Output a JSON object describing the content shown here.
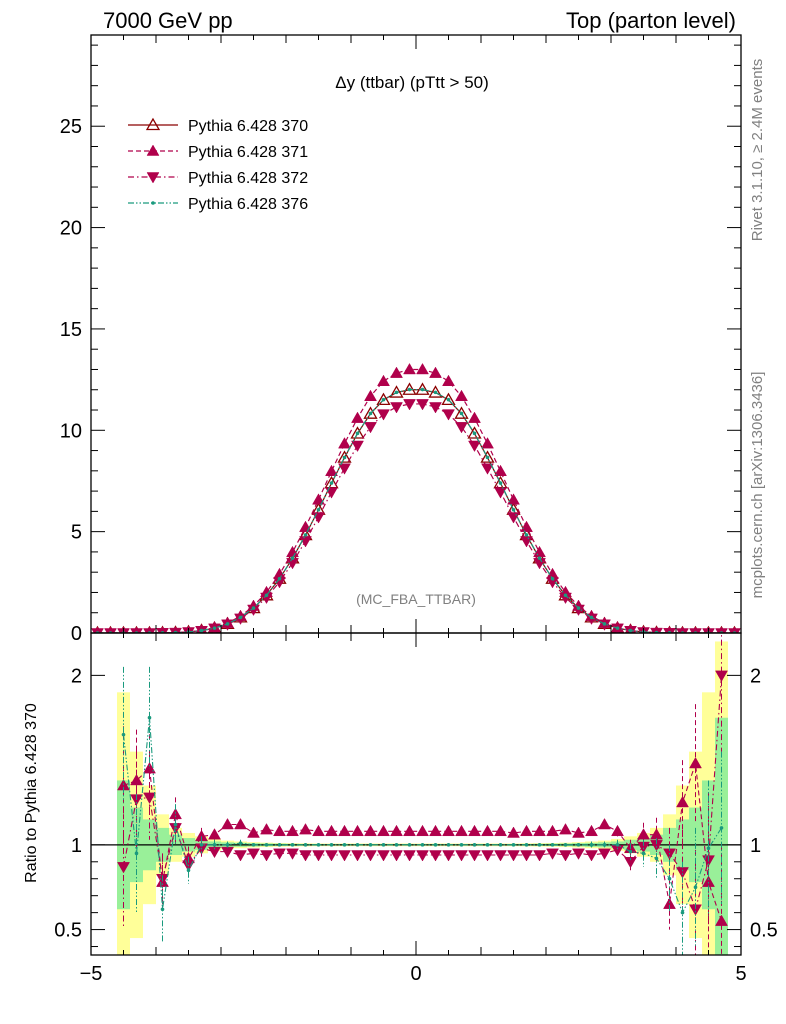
{
  "header": {
    "left": "7000 GeV pp",
    "right": "Top (parton level)"
  },
  "side": {
    "rivet": "Rivet 3.1.10, ≥ 2.4M events",
    "mcplots": "mcplots.cern.ch [arXiv:1306.3436]"
  },
  "chart_data": {
    "type": "line",
    "title": "Δy (ttbar) (pTtt > 50)",
    "watermark": "(MC_FBA_TTBAR)",
    "xlim": [
      -5.0,
      5.0
    ],
    "main": {
      "ylim": [
        0,
        29.5
      ],
      "yticks": [
        0,
        5,
        10,
        15,
        20,
        25
      ],
      "ytick_labels": [
        "0",
        "5",
        "10",
        "15",
        "20",
        "25"
      ]
    },
    "ratio": {
      "ylabel": "Ratio to Pythia 6.428 370",
      "ylim": [
        0.35,
        2.25
      ],
      "yticks": [
        0.5,
        1,
        2
      ],
      "ytick_labels": [
        "0.5",
        "1",
        "2"
      ]
    },
    "xticks": [
      -5,
      0,
      5
    ],
    "xtick_labels": [
      "−5",
      "0",
      "5"
    ],
    "legend_placement": "top-left",
    "x": [
      -4.9,
      -4.7,
      -4.5,
      -4.3,
      -4.1,
      -3.9,
      -3.7,
      -3.5,
      -3.3,
      -3.1,
      -2.9,
      -2.7,
      -2.5,
      -2.3,
      -2.1,
      -1.9,
      -1.7,
      -1.5,
      -1.3,
      -1.1,
      -0.9,
      -0.7,
      -0.5,
      -0.3,
      -0.1,
      0.1,
      0.3,
      0.5,
      0.7,
      0.9,
      1.1,
      1.3,
      1.5,
      1.7,
      1.9,
      2.1,
      2.3,
      2.5,
      2.7,
      2.9,
      3.1,
      3.3,
      3.5,
      3.7,
      3.9,
      4.1,
      4.3,
      4.5,
      4.7,
      4.9
    ],
    "series": [
      {
        "name": "Pythia 6.428 370",
        "color": "#8b0000",
        "dash": "solid",
        "marker": "triangle-up-open",
        "values": [
          0.0,
          0.0,
          0.0,
          0.0,
          0.0,
          0.01,
          0.02,
          0.05,
          0.12,
          0.24,
          0.45,
          0.77,
          1.23,
          1.86,
          2.68,
          3.68,
          4.83,
          6.08,
          7.39,
          8.65,
          9.84,
          10.82,
          11.5,
          11.86,
          12.0,
          12.0,
          11.86,
          11.5,
          10.82,
          9.84,
          8.65,
          7.39,
          6.08,
          4.83,
          3.68,
          2.68,
          1.86,
          1.23,
          0.77,
          0.45,
          0.24,
          0.12,
          0.05,
          0.02,
          0.01,
          0.0,
          0.0,
          0.0,
          0.0,
          0.0
        ]
      },
      {
        "name": "Pythia 6.428 371",
        "color": "#b0004b",
        "dash": "dashed",
        "marker": "triangle-up",
        "values": [
          0.0,
          0.0,
          0.0,
          0.0,
          0.0,
          0.01,
          0.02,
          0.05,
          0.13,
          0.27,
          0.49,
          0.83,
          1.33,
          2.01,
          2.9,
          3.98,
          5.22,
          6.57,
          7.98,
          9.34,
          10.6,
          11.68,
          12.42,
          12.82,
          13.0,
          13.0,
          12.82,
          12.42,
          11.68,
          10.6,
          9.34,
          7.98,
          6.57,
          5.22,
          3.98,
          2.9,
          2.01,
          1.33,
          0.83,
          0.49,
          0.27,
          0.13,
          0.05,
          0.02,
          0.01,
          0.0,
          0.0,
          0.0,
          0.0,
          0.0
        ]
      },
      {
        "name": "Pythia 6.428 372",
        "color": "#b0004b",
        "dash": "dash-dot",
        "marker": "triangle-down",
        "values": [
          0.0,
          0.0,
          0.0,
          0.0,
          0.0,
          0.01,
          0.02,
          0.05,
          0.11,
          0.23,
          0.43,
          0.72,
          1.16,
          1.75,
          2.52,
          3.46,
          4.54,
          5.72,
          6.95,
          8.13,
          9.25,
          10.17,
          10.8,
          11.15,
          11.3,
          11.3,
          11.15,
          10.8,
          10.17,
          9.25,
          8.13,
          6.95,
          5.72,
          4.54,
          3.46,
          2.52,
          1.75,
          1.16,
          0.72,
          0.43,
          0.23,
          0.11,
          0.05,
          0.02,
          0.01,
          0.0,
          0.0,
          0.0,
          0.0,
          0.0
        ]
      },
      {
        "name": "Pythia 6.428 376",
        "color": "#1a9a7e",
        "dash": "dash-dot-dot",
        "marker": "dot",
        "values": [
          0.0,
          0.0,
          0.0,
          0.0,
          0.0,
          0.01,
          0.02,
          0.05,
          0.12,
          0.24,
          0.45,
          0.77,
          1.23,
          1.86,
          2.68,
          3.69,
          4.84,
          6.08,
          7.4,
          8.66,
          9.85,
          10.83,
          11.51,
          11.87,
          12.01,
          12.01,
          11.87,
          11.51,
          10.83,
          9.85,
          8.66,
          7.4,
          6.08,
          4.84,
          3.69,
          2.68,
          1.86,
          1.23,
          0.77,
          0.45,
          0.24,
          0.12,
          0.05,
          0.02,
          0.01,
          0.0,
          0.0,
          0.0,
          0.0,
          0.0
        ]
      }
    ],
    "ratio_series": [
      {
        "name": "Pythia 6.428 371",
        "values": [
          null,
          null,
          1.35,
          1.38,
          1.45,
          0.78,
          1.18,
          0.92,
          1.05,
          1.06,
          1.12,
          1.12,
          1.07,
          1.09,
          1.08,
          1.08,
          1.09,
          1.08,
          1.08,
          1.08,
          1.08,
          1.08,
          1.08,
          1.08,
          1.08,
          1.08,
          1.08,
          1.08,
          1.08,
          1.08,
          1.08,
          1.08,
          1.07,
          1.08,
          1.08,
          1.08,
          1.09,
          1.07,
          1.08,
          1.12,
          1.08,
          0.98,
          1.06,
          1.06,
          0.65,
          1.25,
          1.48,
          0.78,
          0.55,
          null
        ],
        "errors": [
          0,
          0,
          0.35,
          0.3,
          0.25,
          0.15,
          0.1,
          0.07,
          0.05,
          0.03,
          0.02,
          0.02,
          0.01,
          0.01,
          0.01,
          0.01,
          0.01,
          0.01,
          0.01,
          0.01,
          0.01,
          0.01,
          0.01,
          0.01,
          0.01,
          0.01,
          0.01,
          0.01,
          0.01,
          0.01,
          0.01,
          0.01,
          0.01,
          0.01,
          0.01,
          0.01,
          0.01,
          0.01,
          0.02,
          0.02,
          0.03,
          0.05,
          0.07,
          0.1,
          0.15,
          0.25,
          0.35,
          0.4,
          0.45,
          0
        ]
      },
      {
        "name": "Pythia 6.428 372",
        "values": [
          null,
          null,
          0.87,
          1.27,
          1.28,
          0.8,
          1.1,
          0.88,
          0.98,
          0.96,
          0.96,
          0.94,
          0.95,
          0.94,
          0.95,
          0.95,
          0.94,
          0.94,
          0.94,
          0.94,
          0.94,
          0.94,
          0.94,
          0.94,
          0.94,
          0.94,
          0.94,
          0.94,
          0.94,
          0.94,
          0.94,
          0.94,
          0.94,
          0.94,
          0.94,
          0.95,
          0.94,
          0.95,
          0.94,
          0.95,
          0.97,
          0.9,
          0.99,
          1.0,
          0.95,
          0.84,
          0.62,
          0.91,
          2.0,
          null
        ],
        "errors": [
          0,
          0,
          0.35,
          0.3,
          0.25,
          0.15,
          0.1,
          0.07,
          0.05,
          0.03,
          0.02,
          0.02,
          0.01,
          0.01,
          0.01,
          0.01,
          0.01,
          0.01,
          0.01,
          0.01,
          0.01,
          0.01,
          0.01,
          0.01,
          0.01,
          0.01,
          0.01,
          0.01,
          0.01,
          0.01,
          0.01,
          0.01,
          0.01,
          0.01,
          0.01,
          0.01,
          0.01,
          0.01,
          0.02,
          0.02,
          0.03,
          0.05,
          0.07,
          0.1,
          0.15,
          0.25,
          0.35,
          0.4,
          0.45,
          0
        ]
      },
      {
        "name": "Pythia 6.428 376",
        "values": [
          null,
          null,
          1.65,
          0.95,
          1.75,
          0.62,
          1.12,
          0.85,
          1.0,
          1.0,
          1.0,
          1.01,
          1.0,
          1.0,
          1.0,
          1.0,
          1.0,
          1.0,
          1.0,
          1.0,
          1.0,
          1.0,
          1.0,
          1.0,
          1.0,
          1.0,
          1.0,
          1.0,
          1.0,
          1.0,
          1.0,
          1.0,
          1.0,
          1.0,
          1.0,
          1.0,
          1.0,
          1.0,
          1.0,
          1.0,
          1.0,
          0.96,
          0.95,
          0.92,
          0.8,
          0.6,
          0.75,
          0.98,
          1.1,
          null
        ],
        "errors": [
          0,
          0,
          0.4,
          0.35,
          0.3,
          0.2,
          0.12,
          0.08,
          0.05,
          0.03,
          0.02,
          0.02,
          0.01,
          0.01,
          0.01,
          0.01,
          0.01,
          0.01,
          0.01,
          0.01,
          0.01,
          0.01,
          0.01,
          0.01,
          0.01,
          0.01,
          0.01,
          0.01,
          0.01,
          0.01,
          0.01,
          0.01,
          0.01,
          0.01,
          0.01,
          0.01,
          0.01,
          0.01,
          0.02,
          0.02,
          0.03,
          0.05,
          0.08,
          0.12,
          0.2,
          0.3,
          0.35,
          0.4,
          0.45,
          0
        ]
      }
    ],
    "reference_band": {
      "name": "Pythia 6.428 370",
      "stat_err": [
        0,
        0,
        0.38,
        0.22,
        0.15,
        0.1,
        0.06,
        0.04,
        0.03,
        0.02,
        0.015,
        0.012,
        0.01,
        0.008,
        0.007,
        0.006,
        0.005,
        0.005,
        0.004,
        0.004,
        0.004,
        0.004,
        0.004,
        0.004,
        0.004,
        0.004,
        0.004,
        0.004,
        0.004,
        0.004,
        0.004,
        0.004,
        0.005,
        0.005,
        0.006,
        0.007,
        0.008,
        0.01,
        0.012,
        0.015,
        0.02,
        0.03,
        0.04,
        0.06,
        0.1,
        0.15,
        0.22,
        0.38,
        0.75,
        0
      ],
      "total_err": [
        0,
        0,
        0.9,
        0.55,
        0.35,
        0.18,
        0.1,
        0.07,
        0.05,
        0.035,
        0.025,
        0.02,
        0.016,
        0.013,
        0.011,
        0.01,
        0.009,
        0.008,
        0.008,
        0.008,
        0.008,
        0.008,
        0.008,
        0.008,
        0.008,
        0.008,
        0.008,
        0.008,
        0.008,
        0.008,
        0.008,
        0.008,
        0.008,
        0.009,
        0.01,
        0.011,
        0.013,
        0.016,
        0.02,
        0.025,
        0.035,
        0.05,
        0.07,
        0.1,
        0.18,
        0.35,
        0.55,
        0.9,
        1.2,
        0
      ]
    }
  }
}
